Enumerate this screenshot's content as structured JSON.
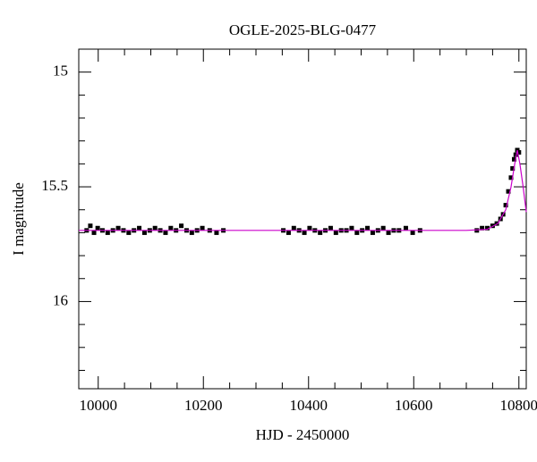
{
  "chart_data": {
    "type": "scatter",
    "title": "OGLE-2025-BLG-0477",
    "x_label": "HJD - 2450000",
    "y_label": "I magnitude",
    "xlim": [
      9963,
      10814
    ],
    "ylim": [
      14.9,
      16.38
    ],
    "y_inverted": true,
    "xticks": [
      10000,
      10200,
      10400,
      10600,
      10800
    ],
    "xminorticks": [
      10050,
      10100,
      10150,
      10250,
      10300,
      10350,
      10450,
      10500,
      10550,
      10650,
      10700,
      10750
    ],
    "yticks": [
      15,
      15.5,
      16
    ],
    "yminorticks": [
      15.1,
      15.2,
      15.3,
      15.4,
      15.6,
      15.7,
      15.8,
      15.9,
      16.1,
      16.2,
      16.3
    ],
    "series": [
      {
        "kind": "points",
        "color": "#000000",
        "x": [
          9978,
          9985,
          9992,
          9999,
          10008,
          10018,
          10028,
          10038,
          10048,
          10058,
          10068,
          10078,
          10088,
          10098,
          10108,
          10118,
          10128,
          10138,
          10148,
          10158,
          10168,
          10178,
          10188,
          10198,
          10212,
          10225,
          10238,
          10352,
          10362,
          10372,
          10382,
          10392,
          10402,
          10412,
          10422,
          10432,
          10442,
          10452,
          10462,
          10472,
          10482,
          10492,
          10502,
          10512,
          10522,
          10532,
          10542,
          10552,
          10562,
          10572,
          10585,
          10598,
          10612,
          10720,
          10730,
          10740,
          10750,
          10758,
          10765,
          10770,
          10775,
          10780,
          10785,
          10788,
          10791,
          10794,
          10797,
          10800
        ],
        "y": [
          15.69,
          15.67,
          15.7,
          15.68,
          15.69,
          15.7,
          15.69,
          15.68,
          15.69,
          15.7,
          15.69,
          15.68,
          15.7,
          15.69,
          15.68,
          15.69,
          15.7,
          15.68,
          15.69,
          15.67,
          15.69,
          15.7,
          15.69,
          15.68,
          15.69,
          15.7,
          15.69,
          15.69,
          15.7,
          15.68,
          15.69,
          15.7,
          15.68,
          15.69,
          15.7,
          15.69,
          15.68,
          15.7,
          15.69,
          15.69,
          15.68,
          15.7,
          15.69,
          15.68,
          15.7,
          15.69,
          15.68,
          15.7,
          15.69,
          15.69,
          15.68,
          15.7,
          15.69,
          15.69,
          15.68,
          15.68,
          15.67,
          15.66,
          15.64,
          15.62,
          15.58,
          15.52,
          15.46,
          15.42,
          15.38,
          15.36,
          15.34,
          15.35
        ]
      },
      {
        "kind": "line",
        "color": "#cc00cc",
        "x": [
          9963,
          10700,
          10740,
          10760,
          10775,
          10785,
          10792,
          10797,
          10802,
          10808,
          10814
        ],
        "y": [
          15.69,
          15.69,
          15.685,
          15.66,
          15.6,
          15.5,
          15.4,
          15.34,
          15.4,
          15.5,
          15.61
        ]
      }
    ]
  }
}
